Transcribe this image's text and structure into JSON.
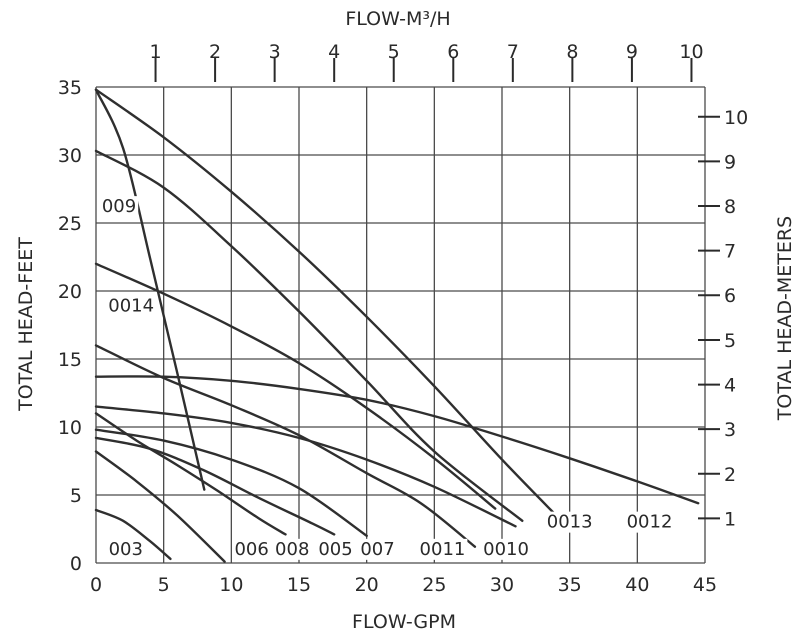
{
  "chart_data": {
    "type": "line",
    "title": "",
    "xlabel": "FLOW-GPM",
    "ylabel": "TOTAL HEAD-FEET",
    "x2label": "FLOW-M³/H",
    "y2label": "TOTAL HEAD-METERS",
    "xlim": [
      0,
      45
    ],
    "ylim": [
      0,
      35
    ],
    "grid": true,
    "legend": "none",
    "x_ticks": [
      "0",
      "5",
      "10",
      "15",
      "20",
      "25",
      "30",
      "35",
      "40",
      "45"
    ],
    "y_ticks": [
      "0",
      "5",
      "10",
      "15",
      "20",
      "25",
      "30",
      "35"
    ],
    "top_ticks": [
      {
        "label": "1",
        "gpm": 4.4
      },
      {
        "label": "2",
        "gpm": 8.8
      },
      {
        "label": "3",
        "gpm": 13.2
      },
      {
        "label": "4",
        "gpm": 17.6
      },
      {
        "label": "5",
        "gpm": 22.0
      },
      {
        "label": "6",
        "gpm": 26.4
      },
      {
        "label": "7",
        "gpm": 30.8
      },
      {
        "label": "8",
        "gpm": 35.2
      },
      {
        "label": "9",
        "gpm": 39.6
      },
      {
        "label": "10",
        "gpm": 44.0
      }
    ],
    "right_ticks": [
      {
        "label": "1",
        "feet": 3.28
      },
      {
        "label": "2",
        "feet": 6.56
      },
      {
        "label": "3",
        "feet": 9.84
      },
      {
        "label": "4",
        "feet": 13.12
      },
      {
        "label": "5",
        "feet": 16.4
      },
      {
        "label": "6",
        "feet": 19.69
      },
      {
        "label": "7",
        "feet": 22.97
      },
      {
        "label": "8",
        "feet": 26.25
      },
      {
        "label": "9",
        "feet": 29.53
      },
      {
        "label": "10",
        "feet": 32.81
      }
    ],
    "series": [
      {
        "name": "003",
        "label_at": [
          2.2,
          0.6
        ],
        "x": [
          0,
          2,
          4,
          5.5
        ],
        "y": [
          3.9,
          3.1,
          1.6,
          0.3
        ]
      },
      {
        "name": "006",
        "label_at": [
          11.5,
          0.6
        ],
        "x": [
          0,
          3,
          6,
          9.5
        ],
        "y": [
          8.2,
          6.0,
          3.5,
          0.1
        ]
      },
      {
        "name": "008",
        "label_at": [
          14.5,
          0.6
        ],
        "x": [
          0,
          3,
          6,
          9,
          12,
          14
        ],
        "y": [
          11.0,
          9.0,
          7.2,
          5.3,
          3.3,
          2.1
        ]
      },
      {
        "name": "005",
        "label_at": [
          17.7,
          0.6
        ],
        "x": [
          0,
          4,
          8,
          12,
          16,
          17.6
        ],
        "y": [
          9.2,
          8.4,
          6.8,
          4.8,
          2.9,
          2.1
        ]
      },
      {
        "name": "007",
        "label_at": [
          20.8,
          0.6
        ],
        "x": [
          0,
          5,
          10,
          15,
          20
        ],
        "y": [
          9.8,
          9.0,
          7.6,
          5.5,
          2.0
        ]
      },
      {
        "name": "0011",
        "label_at": [
          25.6,
          0.6
        ],
        "x": [
          0,
          5,
          10,
          15,
          20,
          24,
          28
        ],
        "y": [
          16.0,
          13.6,
          11.6,
          9.4,
          6.6,
          4.4,
          1.2
        ]
      },
      {
        "name": "0010",
        "label_at": [
          30.3,
          0.6
        ],
        "x": [
          0,
          5,
          10,
          15,
          20,
          25,
          31
        ],
        "y": [
          11.5,
          11.0,
          10.3,
          9.2,
          7.6,
          5.6,
          2.7
        ]
      },
      {
        "name": "0013",
        "label_at": [
          35.0,
          2.6
        ],
        "x": [
          0,
          5,
          10,
          15,
          20,
          25,
          30,
          33.9
        ],
        "y": [
          34.8,
          31.3,
          27.3,
          22.9,
          18.1,
          13.0,
          7.6,
          3.6
        ]
      },
      {
        "name": "0012",
        "label_at": [
          40.9,
          2.6
        ],
        "x": [
          0,
          5,
          10,
          15,
          20,
          25,
          30,
          35,
          40,
          44.5
        ],
        "y": [
          13.7,
          13.7,
          13.4,
          12.8,
          12.0,
          10.8,
          9.3,
          7.7,
          6.0,
          4.4
        ]
      },
      {
        "name": "009",
        "label_at": [
          1.7,
          25.8
        ],
        "x": [
          0,
          2,
          4,
          6,
          8
        ],
        "y": [
          34.8,
          30.5,
          22.4,
          14.0,
          5.4
        ]
      },
      {
        "name": "0014",
        "label_at": [
          2.6,
          18.5
        ],
        "x": [
          0,
          5,
          10,
          15,
          20,
          25,
          29.5
        ],
        "y": [
          22.0,
          19.8,
          17.4,
          14.7,
          11.4,
          7.7,
          4.0
        ]
      },
      {
        "name": "",
        "x": [
          0,
          5,
          10,
          15,
          20,
          25,
          31.5
        ],
        "y": [
          30.3,
          27.6,
          23.3,
          18.5,
          13.4,
          8.2,
          3.1
        ]
      }
    ]
  }
}
